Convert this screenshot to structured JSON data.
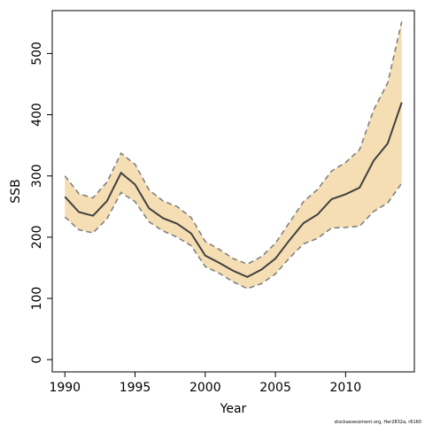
{
  "chart_data": {
    "type": "line",
    "xlabel": "Year",
    "ylabel": "SSB",
    "footnote": "stockassessment.org, Her2832a, r6160",
    "xlim": [
      1989.1,
      2014.9
    ],
    "ylim": [
      -20,
      570
    ],
    "x_ticks": [
      1990,
      1995,
      2000,
      2005,
      2010
    ],
    "y_ticks": [
      0,
      100,
      200,
      300,
      400,
      500
    ],
    "grid": false,
    "band_color": "#F5DEB3",
    "line_color": "#404040",
    "bound_color": "#808080",
    "x": [
      1990,
      1991,
      1992,
      1993,
      1994,
      1995,
      1996,
      1997,
      1998,
      1999,
      2000,
      2001,
      2002,
      2003,
      2004,
      2005,
      2006,
      2007,
      2008,
      2009,
      2010,
      2011,
      2012,
      2013,
      2014
    ],
    "series": [
      {
        "values": [
          266,
          241,
          235,
          259,
          305,
          286,
          247,
          231,
          222,
          206,
          170,
          158,
          145,
          135,
          147,
          165,
          195,
          223,
          237,
          262,
          270,
          281,
          325,
          353,
          420
        ]
      },
      {
        "values": [
          300,
          271,
          264,
          290,
          337,
          319,
          277,
          259,
          250,
          232,
          193,
          180,
          165,
          156,
          168,
          190,
          224,
          258,
          278,
          308,
          322,
          343,
          408,
          452,
          552
        ]
      },
      {
        "values": [
          233,
          212,
          207,
          230,
          273,
          258,
          225,
          210,
          200,
          186,
          152,
          141,
          127,
          116,
          124,
          140,
          166,
          189,
          198,
          215,
          216,
          218,
          242,
          256,
          288
        ]
      }
    ]
  }
}
